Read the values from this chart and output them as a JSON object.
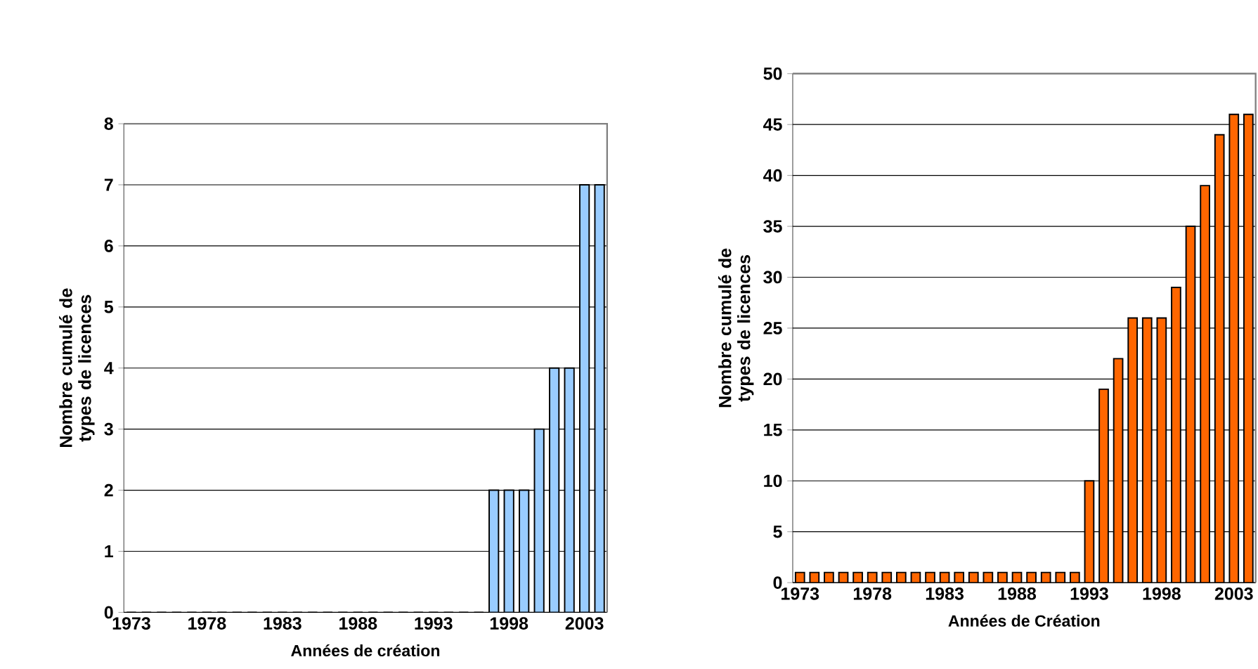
{
  "chart_data": [
    {
      "type": "bar",
      "xlabel": "Années de création",
      "ylabel": "Nombre cumulé de types de licences",
      "categories": [
        "1973",
        null,
        null,
        null,
        null,
        "1978",
        null,
        null,
        null,
        null,
        "1983",
        null,
        null,
        null,
        null,
        "1988",
        null,
        null,
        null,
        null,
        "1993",
        null,
        null,
        null,
        null,
        "1998",
        null,
        null,
        null,
        null,
        "2003",
        null
      ],
      "values": [
        0,
        0,
        0,
        0,
        0,
        0,
        0,
        0,
        0,
        0,
        0,
        0,
        0,
        0,
        0,
        0,
        0,
        0,
        0,
        0,
        0,
        0,
        0,
        0,
        2,
        2,
        2,
        3,
        4,
        4,
        7,
        7
      ],
      "color": "#99ccff",
      "ylim": [
        0,
        8
      ],
      "yticks": [
        0,
        1,
        2,
        3,
        4,
        5,
        6,
        7,
        8
      ],
      "grid": "y"
    },
    {
      "type": "bar",
      "xlabel": "Années de Création",
      "ylabel": "Nombre cumulé de types de licences",
      "categories": [
        "1973",
        null,
        null,
        null,
        null,
        "1978",
        null,
        null,
        null,
        null,
        "1983",
        null,
        null,
        null,
        null,
        "1988",
        null,
        null,
        null,
        null,
        "1993",
        null,
        null,
        null,
        null,
        "1998",
        null,
        null,
        null,
        null,
        "2003",
        null
      ],
      "values": [
        1,
        1,
        1,
        1,
        1,
        1,
        1,
        1,
        1,
        1,
        1,
        1,
        1,
        1,
        1,
        1,
        1,
        1,
        1,
        1,
        10,
        19,
        22,
        26,
        26,
        26,
        29,
        35,
        39,
        44,
        46,
        46
      ],
      "color": "#ff6600",
      "ylim": [
        0,
        50
      ],
      "yticks": [
        0,
        5,
        10,
        15,
        20,
        25,
        30,
        35,
        40,
        45,
        50
      ],
      "grid": "y"
    }
  ]
}
